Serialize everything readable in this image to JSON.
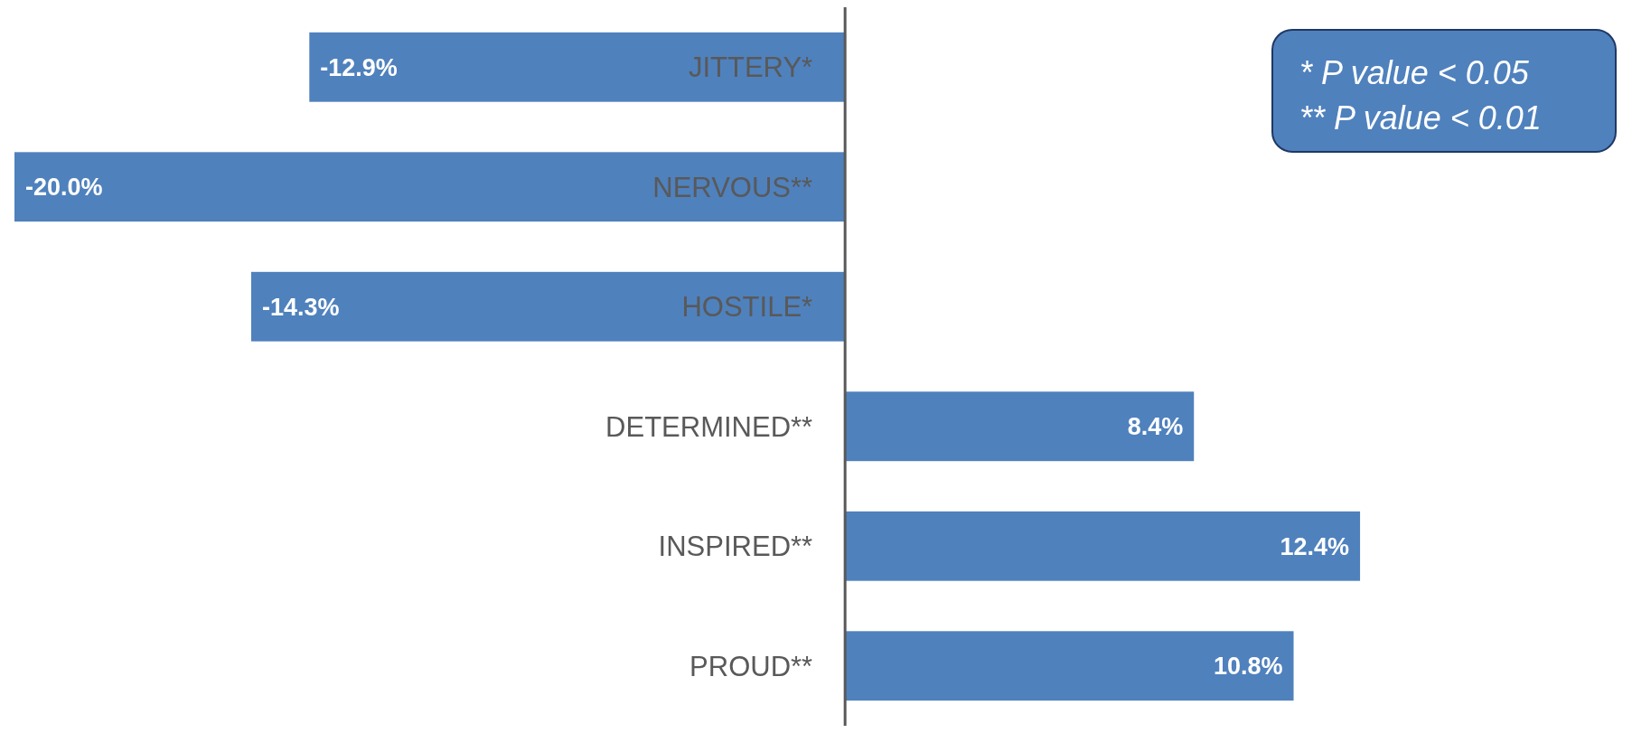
{
  "chart_data": {
    "type": "bar",
    "orientation": "horizontal",
    "categories": [
      "JITTERY*",
      "NERVOUS**",
      "HOSTILE*",
      "DETERMINED**",
      "INSPIRED**",
      "PROUD**"
    ],
    "values": [
      -12.9,
      -20.0,
      -14.3,
      8.4,
      12.4,
      10.8
    ],
    "value_labels": [
      "-12.9%",
      "-20.0%",
      "-14.3%",
      "8.4%",
      "12.4%",
      "10.8%"
    ],
    "color": "#4f81bd",
    "annotations": [
      "* P value < 0.05",
      "** P value < 0.01"
    ]
  }
}
